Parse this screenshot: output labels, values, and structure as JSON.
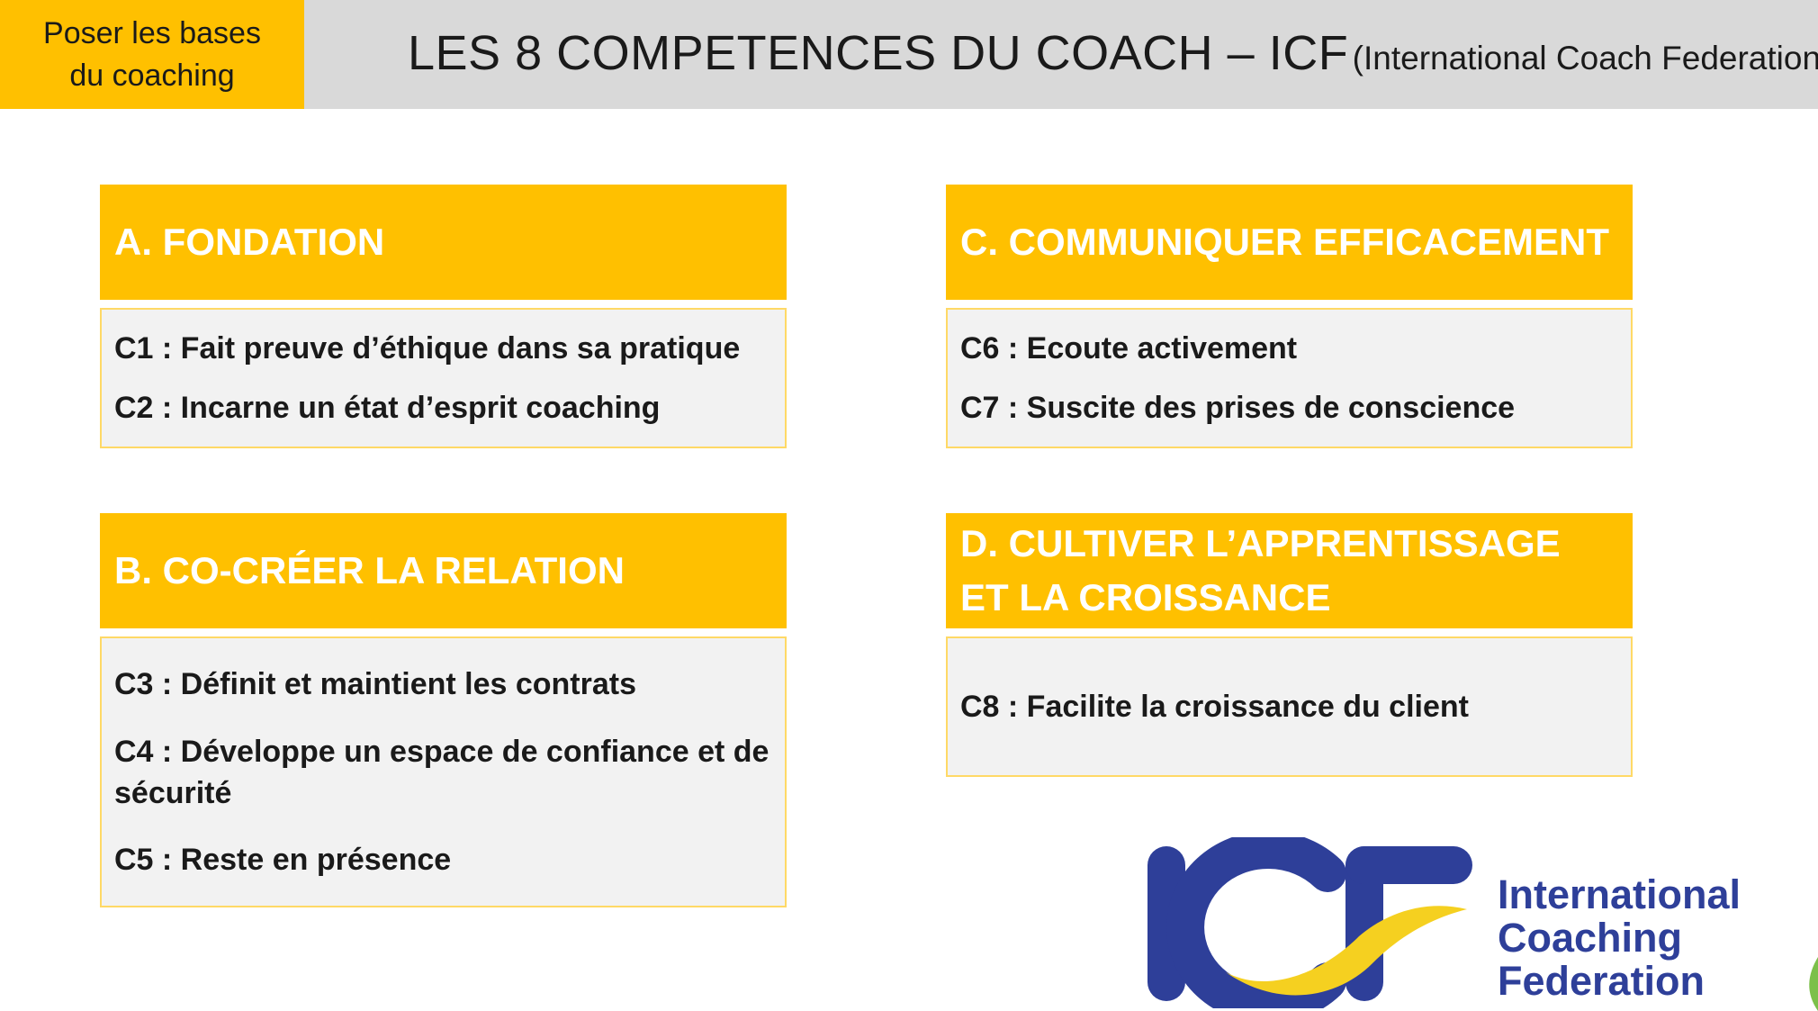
{
  "header": {
    "section_tag": [
      "Poser les bases",
      "du coaching"
    ],
    "title": "LES 8 COMPETENCES DU COACH – ICF",
    "subtitle": "(International Coach Federation)"
  },
  "groups": [
    {
      "id": "A",
      "title": "A. FONDATION",
      "items": [
        "C1 : Fait preuve d’éthique dans sa pratique",
        "C2 : Incarne un état d’esprit coaching"
      ]
    },
    {
      "id": "B",
      "title": "B. CO-CRÉER LA RELATION",
      "items": [
        "C3 : Définit et maintient les contrats",
        "C4 : Développe un espace de confiance et de sécurité",
        "C5 : Reste en présence"
      ]
    },
    {
      "id": "C",
      "title": "C. COMMUNIQUER EFFICACEMENT",
      "items": [
        "C6 : Ecoute activement",
        "C7 : Suscite des prises de conscience"
      ]
    },
    {
      "id": "D",
      "title": "D. CULTIVER L’APPRENTISSAGE ET LA CROISSANCE",
      "items": [
        "C8 : Facilite la croissance du client"
      ]
    }
  ],
  "logo": {
    "mark": "ICF",
    "text": [
      "International",
      "Coaching",
      "Federation"
    ]
  },
  "colors": {
    "accent": "#ffc000",
    "header_gray": "#d9d9d9",
    "card_body": "#f2f2f2",
    "logo_blue": "#2e3f99",
    "logo_swoosh": "#f5d020"
  }
}
